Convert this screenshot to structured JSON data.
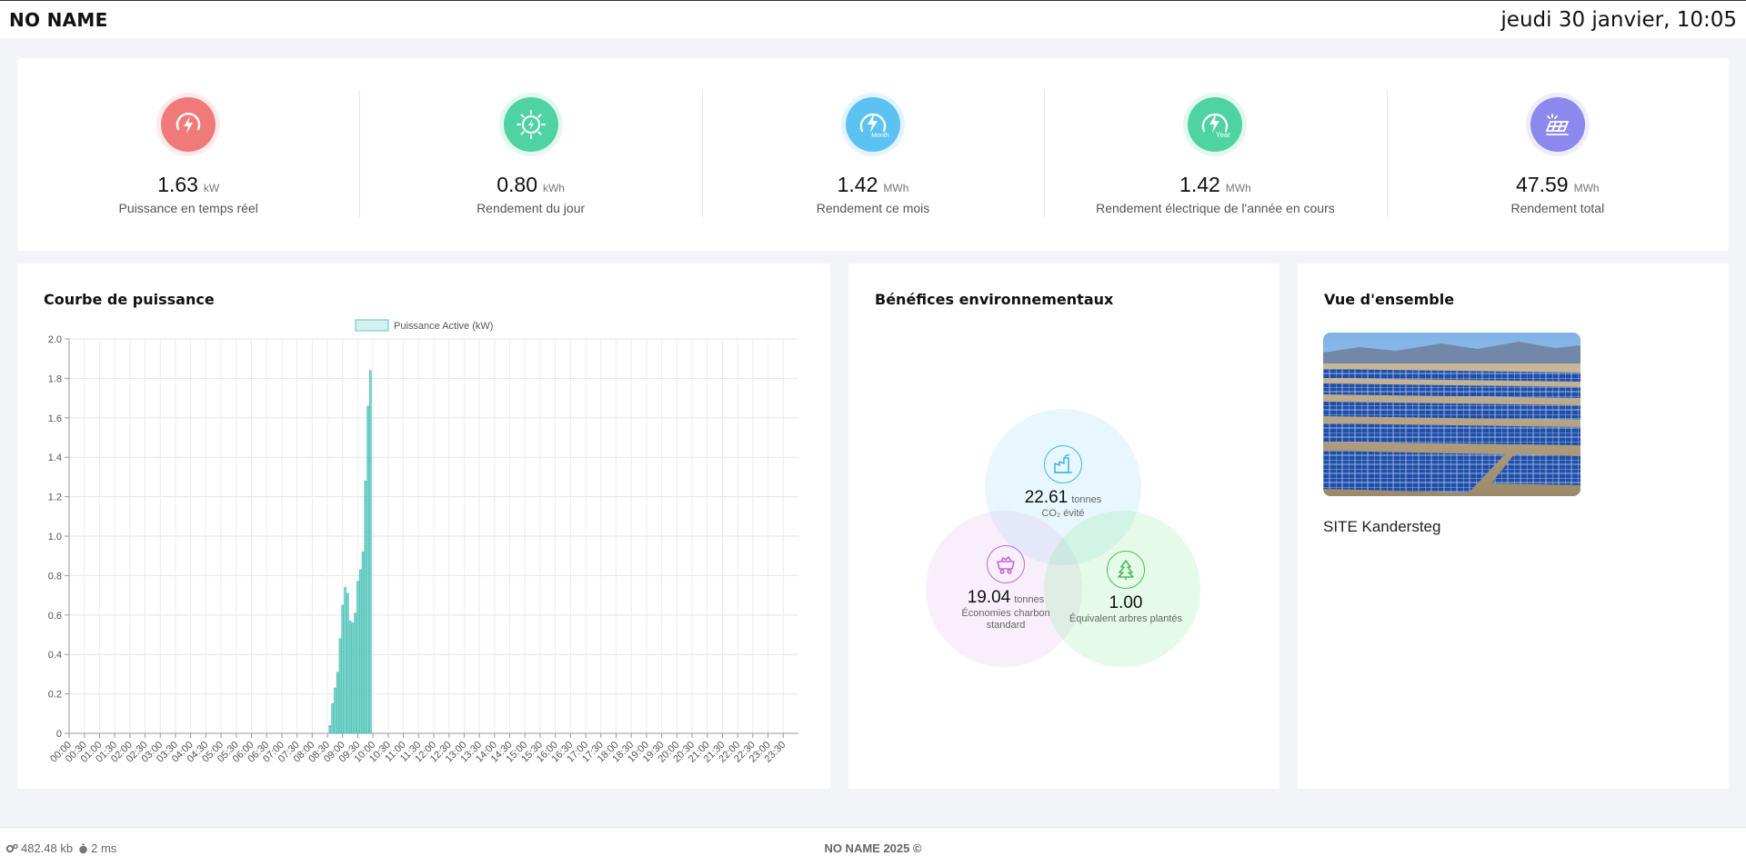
{
  "header": {
    "brand": "NO NAME",
    "datetime": "jeudi 30 janvier, 10:05"
  },
  "kpis": [
    {
      "value": "1.63",
      "unit": "kW",
      "label": "Puissance en temps réel",
      "icon": "bolt-gauge-icon",
      "color": "#f07a7a"
    },
    {
      "value": "0.80",
      "unit": "kWh",
      "label": "Rendement du jour",
      "icon": "sun-bolt-icon",
      "color": "#4fd3a3"
    },
    {
      "value": "1.42",
      "unit": "MWh",
      "label": "Rendement ce mois",
      "icon": "bolt-month-icon",
      "color": "#5cc2f2",
      "badge": "Month"
    },
    {
      "value": "1.42",
      "unit": "MWh",
      "label": "Rendement électrique de l'année en cours",
      "icon": "bolt-year-icon",
      "color": "#4fd3a3",
      "badge": "Year"
    },
    {
      "value": "47.59",
      "unit": "MWh",
      "label": "Rendement total",
      "icon": "solar-panel-icon",
      "color": "#8d88ee"
    }
  ],
  "power_card": {
    "title": "Courbe de puissance"
  },
  "chart_data": {
    "type": "bar",
    "legend": [
      "Puissance Active (kW)"
    ],
    "series": [
      {
        "name": "Puissance Active (kW)",
        "color": "#7fd8d0",
        "x": [
          "08:35",
          "08:40",
          "08:45",
          "08:50",
          "08:55",
          "09:00",
          "09:05",
          "09:10",
          "09:15",
          "09:20",
          "09:25",
          "09:30",
          "09:35",
          "09:40",
          "09:45",
          "09:50",
          "09:55"
        ],
        "values": [
          0.04,
          0.15,
          0.23,
          0.31,
          0.48,
          0.65,
          0.74,
          0.71,
          0.57,
          0.56,
          0.61,
          0.77,
          0.83,
          0.92,
          1.28,
          1.66,
          1.84
        ]
      }
    ],
    "x_tick_labels": [
      "00:00",
      "00:30",
      "01:00",
      "01:30",
      "02:00",
      "02:30",
      "03:00",
      "03:30",
      "04:00",
      "04:30",
      "05:00",
      "05:30",
      "06:00",
      "06:30",
      "07:00",
      "07:30",
      "08:00",
      "08:30",
      "09:00",
      "09:30",
      "10:00",
      "10:30",
      "11:00",
      "11:30",
      "12:00",
      "12:30",
      "13:00",
      "13:30",
      "14:00",
      "14:30",
      "15:00",
      "15:30",
      "16:00",
      "16:30",
      "17:00",
      "17:30",
      "18:00",
      "18:30",
      "19:00",
      "19:30",
      "20:00",
      "20:30",
      "21:00",
      "21:30",
      "22:00",
      "22:30",
      "23:00",
      "23:30"
    ],
    "y_ticks": [
      "0",
      "0.2",
      "0.4",
      "0.6",
      "0.8",
      "1.0",
      "1.2",
      "1.4",
      "1.6",
      "1.8",
      "2.0"
    ],
    "ylim": [
      0,
      2.0
    ],
    "xlim": [
      "00:00",
      "24:00"
    ],
    "grid": true,
    "legend_position": "top-center"
  },
  "env_card": {
    "title": "Bénéfices environnementaux",
    "co2": {
      "value": "22.61",
      "unit": "tonnes",
      "label": "CO₂ évité",
      "icon": "factory-icon",
      "color": "#3fb8e3"
    },
    "coal": {
      "value": "19.04",
      "unit": "tonnes",
      "label_line1": "Économies charbon",
      "label_line2": "standard",
      "icon": "coal-cart-icon",
      "color": "#c26ad6"
    },
    "trees": {
      "value": "1.00",
      "label": "Équivalent arbres plantés",
      "icon": "tree-icon",
      "color": "#4dbf55"
    }
  },
  "overview_card": {
    "title": "Vue d'ensemble",
    "site_name": "SITE Kandersteg"
  },
  "footer": {
    "memory": "482.48 kb",
    "time": "2 ms",
    "copyright": "NO NAME 2025 ©"
  }
}
